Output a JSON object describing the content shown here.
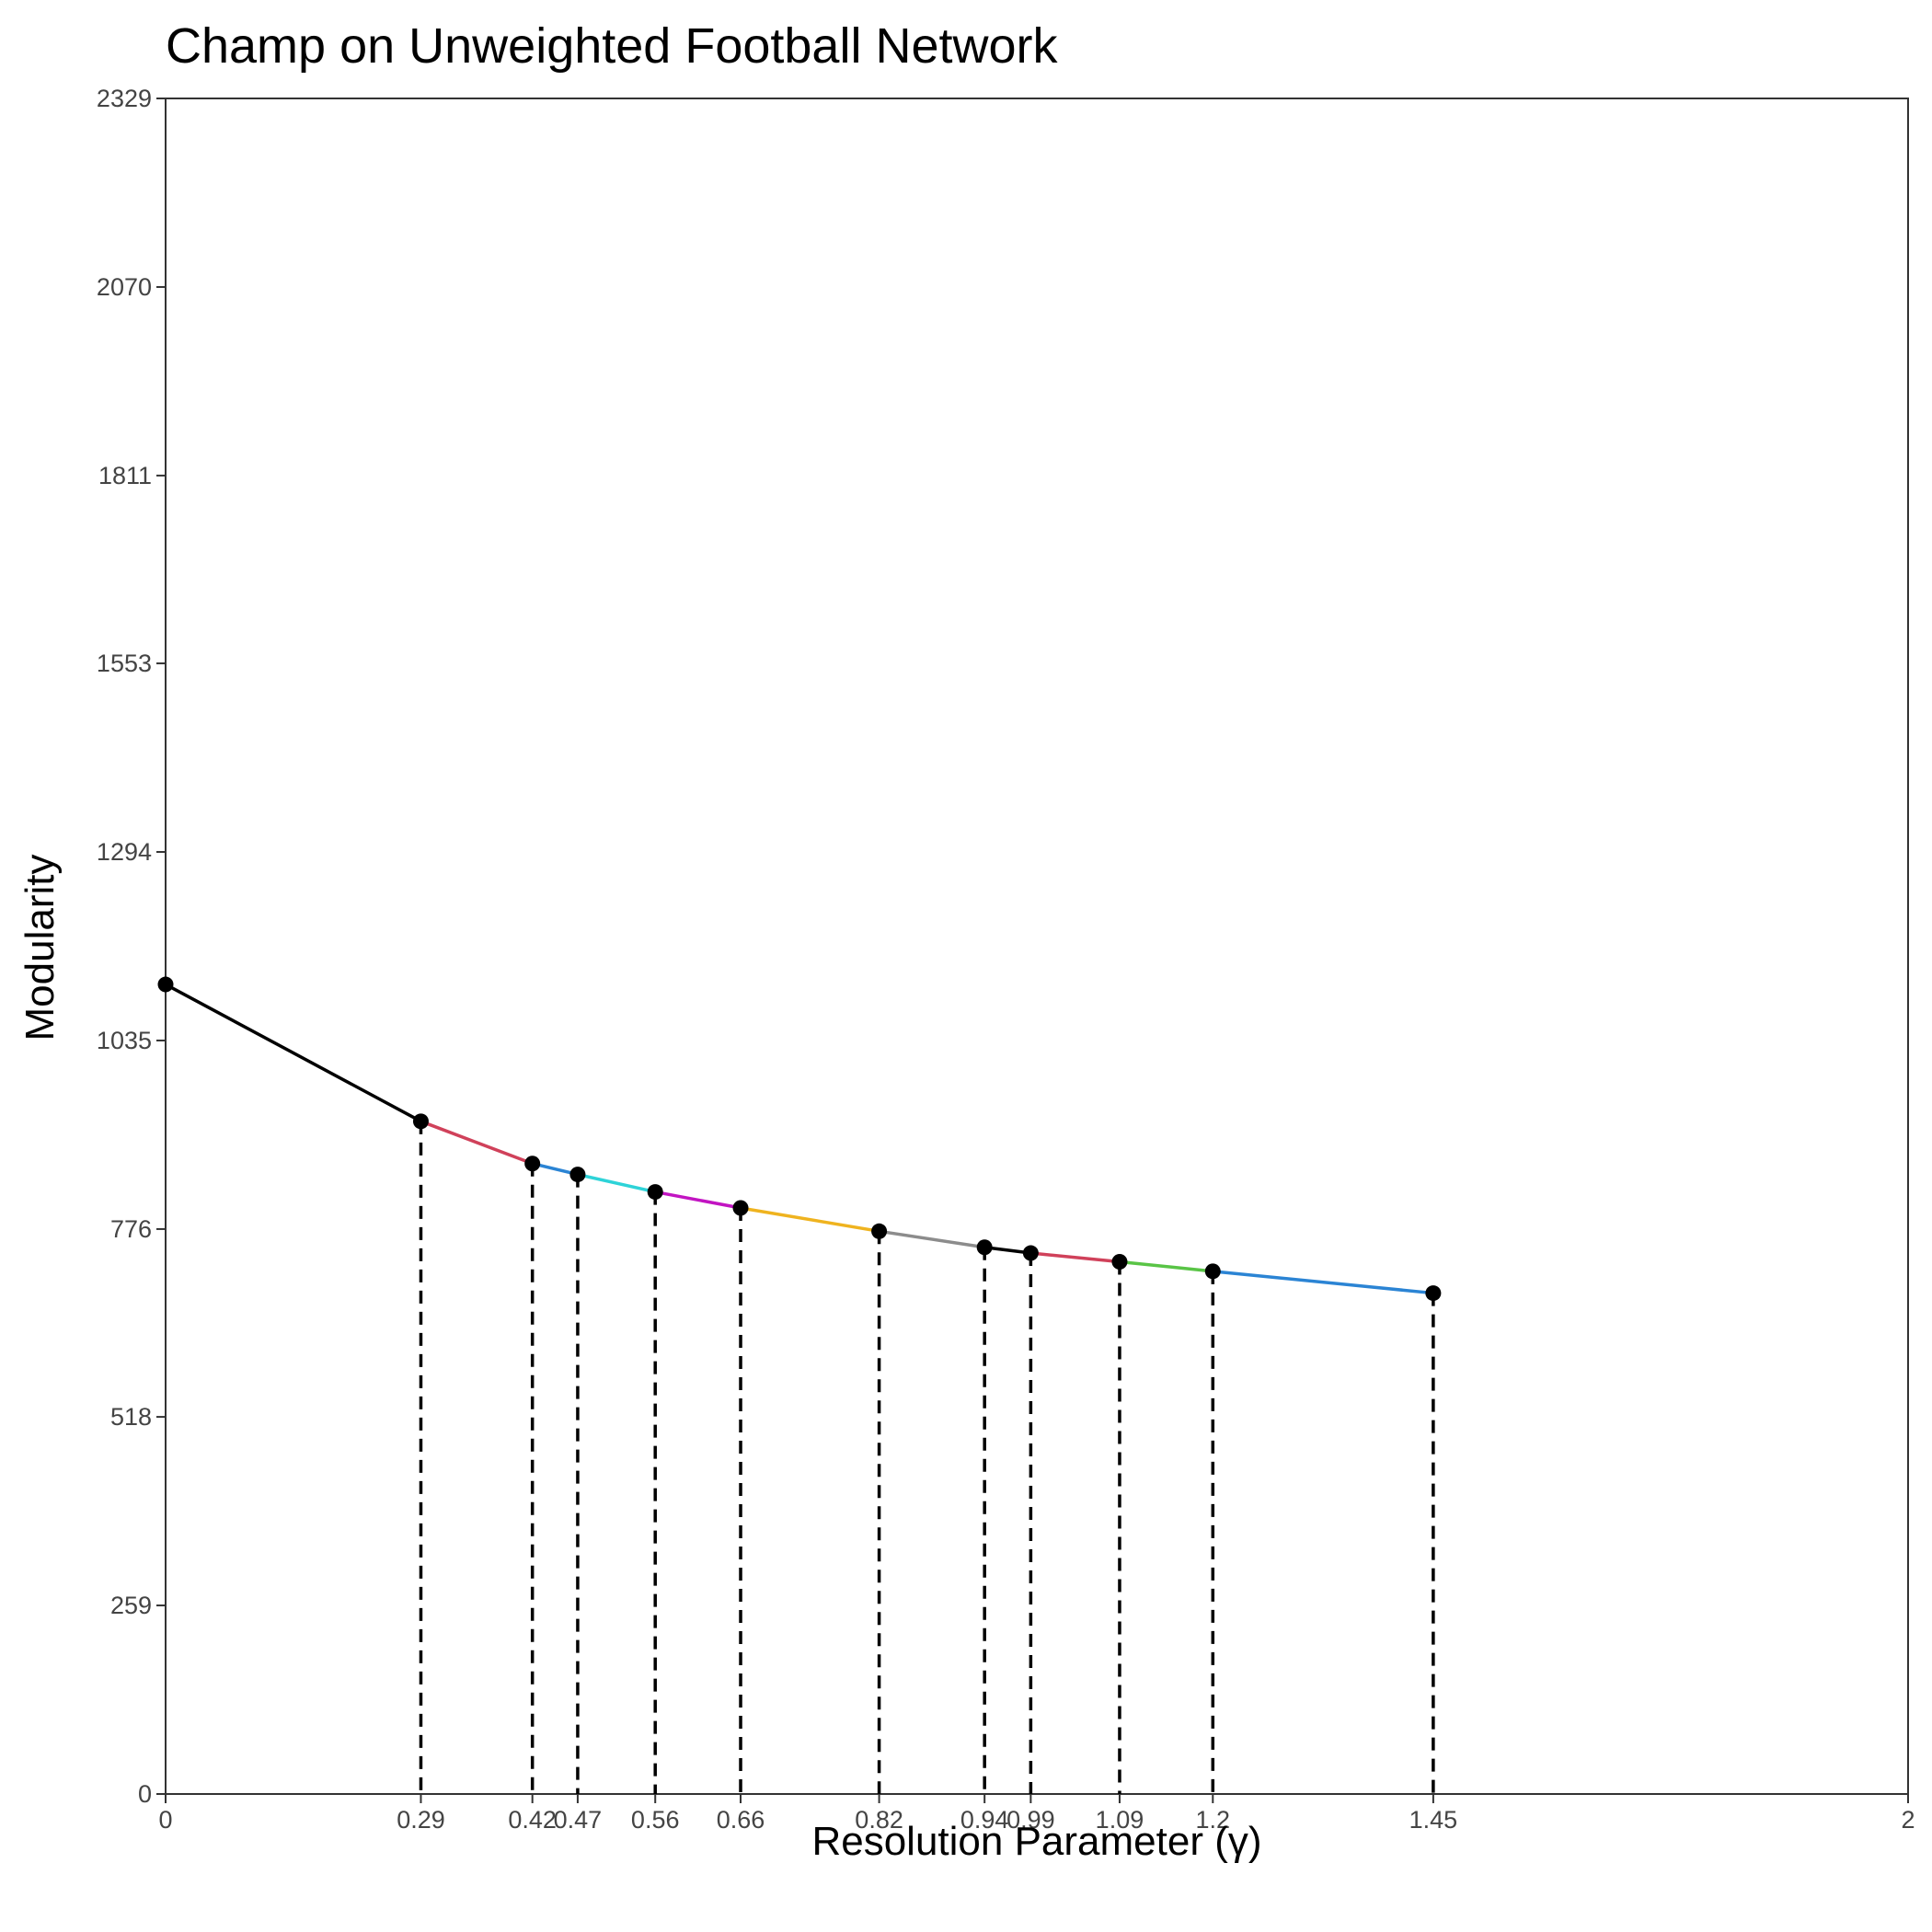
{
  "chart_data": {
    "type": "line",
    "title": "Champ on Unweighted Football Network",
    "xlabel": "Resolution Parameter (γ)",
    "ylabel": "Modularity",
    "xlim": [
      0,
      2
    ],
    "ylim": [
      0,
      2329
    ],
    "xticks": [
      {
        "value": 0,
        "label": "0"
      },
      {
        "value": 0.293,
        "label": "0.29"
      },
      {
        "value": 0.421,
        "label": "0.42"
      },
      {
        "value": 0.473,
        "label": "0.47"
      },
      {
        "value": 0.562,
        "label": "0.56"
      },
      {
        "value": 0.66,
        "label": "0.66"
      },
      {
        "value": 0.819,
        "label": "0.82"
      },
      {
        "value": 0.94,
        "label": "0.94"
      },
      {
        "value": 0.993,
        "label": "0.99"
      },
      {
        "value": 1.095,
        "label": "1.09"
      },
      {
        "value": 1.202,
        "label": "1.2"
      },
      {
        "value": 1.455,
        "label": "1.45"
      },
      {
        "value": 2,
        "label": "2"
      }
    ],
    "yticks": [
      {
        "value": 0,
        "label": "0"
      },
      {
        "value": 259,
        "label": "259"
      },
      {
        "value": 518,
        "label": "518"
      },
      {
        "value": 776,
        "label": "776"
      },
      {
        "value": 1035,
        "label": "1035"
      },
      {
        "value": 1294,
        "label": "1294"
      },
      {
        "value": 1553,
        "label": "1553"
      },
      {
        "value": 1811,
        "label": "1811"
      },
      {
        "value": 2070,
        "label": "2070"
      },
      {
        "value": 2329,
        "label": "2329"
      }
    ],
    "points": [
      {
        "x": 0,
        "y": 1112
      },
      {
        "x": 0.293,
        "y": 924
      },
      {
        "x": 0.421,
        "y": 866
      },
      {
        "x": 0.473,
        "y": 851
      },
      {
        "x": 0.562,
        "y": 827
      },
      {
        "x": 0.66,
        "y": 805
      },
      {
        "x": 0.819,
        "y": 773
      },
      {
        "x": 0.94,
        "y": 751
      },
      {
        "x": 0.993,
        "y": 743
      },
      {
        "x": 1.095,
        "y": 731
      },
      {
        "x": 1.202,
        "y": 718
      },
      {
        "x": 1.455,
        "y": 688
      }
    ],
    "segment_colors": [
      "#000000",
      "#d0415a",
      "#2b84d4",
      "#2ed3d8",
      "#c214c2",
      "#efb31f",
      "#8c8c8c",
      "#000000",
      "#d0415a",
      "#59c446",
      "#2b84d4"
    ],
    "point_color": "#000000",
    "dashed_line_color": "#000000",
    "grid": false,
    "legend": "none"
  }
}
